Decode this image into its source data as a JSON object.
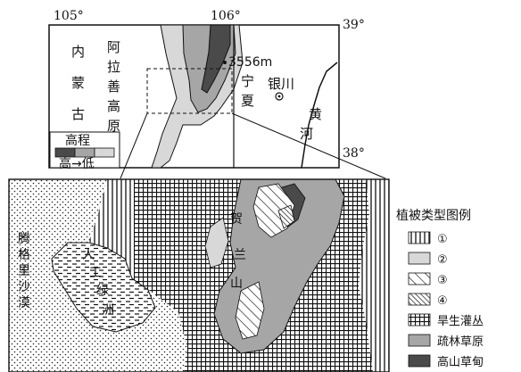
{
  "overview": {
    "lon_left": "105°",
    "lon_right": "106°",
    "lat_top": "39°",
    "lat_bottom": "38°",
    "peak": "3556m",
    "labels": {
      "neimeng": [
        "内",
        "蒙",
        "古"
      ],
      "alashan": [
        "阿",
        "拉",
        "善",
        "高",
        "原"
      ],
      "ningxia": [
        "宁",
        "夏"
      ],
      "yinchuan": "银川",
      "huanghe": [
        "黄",
        "河"
      ]
    },
    "elevation_legend": {
      "title": "高程",
      "scale": "高→低"
    }
  },
  "detail": {
    "tengger": [
      "腾",
      "格",
      "里",
      "沙",
      "漠"
    ],
    "oasis": [
      "人",
      "工",
      "绿",
      "洲"
    ],
    "helan": [
      "贺",
      "兰",
      "山"
    ]
  },
  "legend": {
    "title": "植被类型图例",
    "items": [
      {
        "label": "①",
        "pattern": "vertical-lines"
      },
      {
        "label": "②",
        "pattern": "light-gray"
      },
      {
        "label": "③",
        "pattern": "sparse-diagonal"
      },
      {
        "label": "④",
        "pattern": "dense-diagonal"
      },
      {
        "label": "旱生灌丛",
        "pattern": "grid"
      },
      {
        "label": "疏林草原",
        "pattern": "medium-gray"
      },
      {
        "label": "高山草甸",
        "pattern": "dark-gray"
      }
    ]
  },
  "colors": {
    "light_gray": "#d8d8d8",
    "medium_gray": "#a6a6a6",
    "dark_gray": "#4a4a4a"
  }
}
